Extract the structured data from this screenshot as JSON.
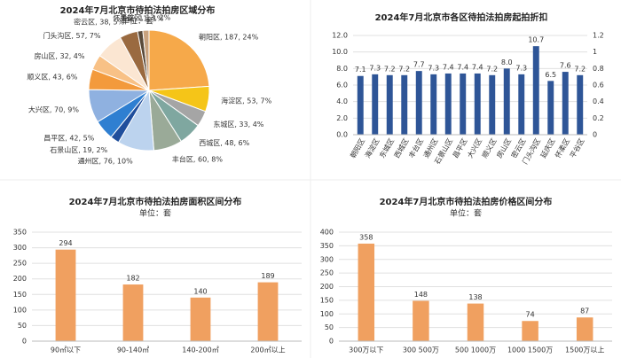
{
  "chart_data": [
    {
      "type": "pie",
      "title": "2024年7月北京市待拍法拍房区域分布",
      "subtitle": "单位：套",
      "values": [
        187,
        53,
        33,
        48,
        60,
        76,
        19,
        42,
        70,
        43,
        32,
        57,
        38,
        11,
        13
      ],
      "value_labels": [
        "朝阳区, 187, 24%",
        "海淀区, 53, 7%",
        "东城区, 33, 4%",
        "西城区, 48, 6%",
        "丰台区, 60, 8%",
        "通州区, 76, 10%",
        "石景山区, 19, 2%",
        "昌平区, 42, 5%",
        "大兴区, 70, 9%",
        "顺义区, 43, 6%",
        "房山区, 32, 4%",
        "门头沟区, 57, 7%",
        "密云区, 38, 5%",
        "怀柔区, 11, 1%",
        "平谷区, 13, 2%"
      ],
      "colors": [
        "#f6a94a",
        "#f5c518",
        "#a5a5a5",
        "#7fa7a0",
        "#9aaa98",
        "#bcd3ee",
        "#1f4e9c",
        "#2f7fd1",
        "#8fb1e0",
        "#f39a3c",
        "#f8c186",
        "#fbe6d2",
        "#9a6a40",
        "#5a4a3a",
        "#c9a27e"
      ]
    },
    {
      "type": "bar",
      "title": "2024年7月北京市各区待拍法拍房起拍折扣",
      "categories": [
        "朝阳区",
        "海淀区",
        "东城区",
        "西城区",
        "丰台区",
        "通州区",
        "石景山区",
        "昌平区",
        "大兴区",
        "顺义区",
        "房山区",
        "密云区",
        "门头沟区",
        "延庆区",
        "怀柔区",
        "平谷区"
      ],
      "values": [
        7.1,
        7.3,
        7.2,
        7.2,
        7.7,
        7.3,
        7.4,
        7.4,
        7.4,
        7.2,
        8.0,
        7.3,
        10.7,
        6.5,
        7.6,
        7.2
      ],
      "value_labels": [
        "7.1",
        "7.3",
        "7.2",
        "7.2",
        "7.7",
        "7.3",
        "7.4",
        "7.4",
        "7.4",
        "7.2",
        "8.0",
        "7.3",
        "10.7",
        "6.5",
        "7.6",
        "7.2"
      ],
      "color": "#2e5597",
      "ylim": [
        0,
        12
      ],
      "yticks": [
        {
          "value": 0,
          "label": "0.0"
        },
        {
          "value": 2,
          "label": "2.0"
        },
        {
          "value": 4,
          "label": "4.0"
        },
        {
          "value": 6,
          "label": "6.0"
        },
        {
          "value": 8,
          "label": "8.0"
        },
        {
          "value": 10,
          "label": "10.0"
        },
        {
          "value": 12,
          "label": "12.0"
        }
      ],
      "y2lim": [
        0,
        1.2
      ],
      "y2ticks": [
        0,
        0.2,
        0.4,
        0.6,
        0.8,
        1,
        1.2
      ],
      "grid": true
    },
    {
      "type": "bar",
      "title": "2024年7月北京市待拍法拍房面积区间分布",
      "subtitle": "单位：套",
      "categories": [
        "90㎡以下",
        "90-140㎡",
        "140-200㎡",
        "200㎡以上"
      ],
      "values": [
        294,
        182,
        140,
        189
      ],
      "color": "#f0a060",
      "ylim": [
        0,
        350
      ],
      "yticks": [
        0,
        50,
        100,
        150,
        200,
        250,
        300,
        350
      ],
      "grid": true
    },
    {
      "type": "bar",
      "title": "2024年7月北京市待拍法拍房价格区间分布",
      "subtitle": "单位：套",
      "categories": [
        "300万以下",
        "300 500万",
        "500 1000万",
        "1000 1500万",
        "1500万以上"
      ],
      "values": [
        358,
        148,
        138,
        74,
        87
      ],
      "color": "#f0a060",
      "ylim": [
        0,
        400
      ],
      "yticks": [
        0,
        50,
        100,
        150,
        200,
        250,
        300,
        350,
        400
      ],
      "grid": true
    }
  ]
}
